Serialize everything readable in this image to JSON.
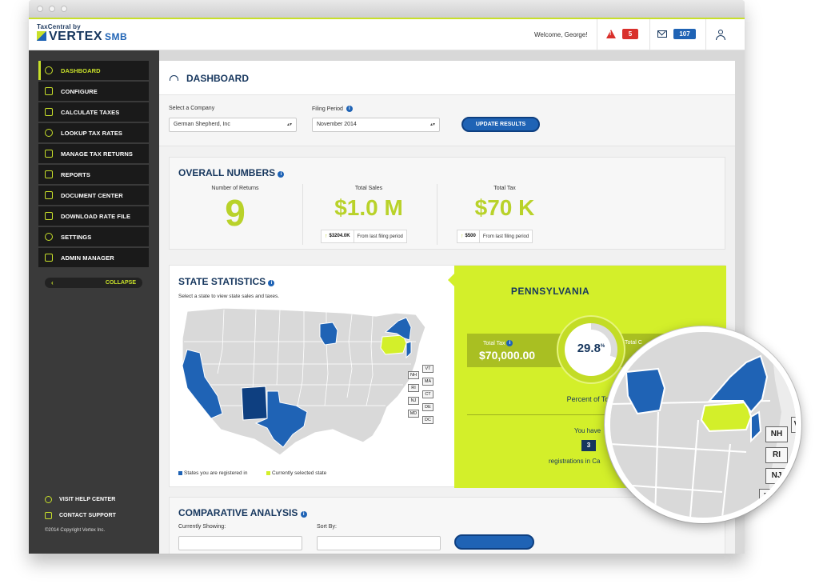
{
  "header": {
    "logo_small": "TaxCentral by",
    "logo_main": "VERTEX",
    "logo_suffix": "SMB",
    "welcome": "Welcome, George!",
    "alerts_count": "5",
    "messages_count": "107"
  },
  "sidebar": {
    "items": [
      {
        "label": "DASHBOARD",
        "icon": "gauge-icon"
      },
      {
        "label": "CONFIGURE",
        "icon": "sliders-icon"
      },
      {
        "label": "CALCULATE TAXES",
        "icon": "calculator-icon"
      },
      {
        "label": "LOOKUP TAX RATES",
        "icon": "magnifier-icon"
      },
      {
        "label": "MANAGE TAX RETURNS",
        "icon": "documents-icon"
      },
      {
        "label": "REPORTS",
        "icon": "chart-icon"
      },
      {
        "label": "DOCUMENT CENTER",
        "icon": "folder-icon"
      },
      {
        "label": "DOWNLOAD RATE FILE",
        "icon": "download-icon"
      },
      {
        "label": "SETTINGS",
        "icon": "gear-icon"
      },
      {
        "label": "ADMIN MANAGER",
        "icon": "admin-icon"
      }
    ],
    "collapse_chevron": "‹",
    "collapse_label": "COLLAPSE",
    "help_center": "VISIT HELP CENTER",
    "contact_support": "CONTACT SUPPORT",
    "copyright": "©2014 Copyright Vertex Inc."
  },
  "main": {
    "page_title": "DASHBOARD",
    "filters": {
      "company_label": "Select a Company",
      "company_value": "German Shepherd, Inc",
      "period_label": "Filing Period",
      "period_value": "November 2014",
      "update_button": "UPDATE RESULTS",
      "arrow": "▴▾"
    },
    "overall": {
      "title": "OVERALL NUMBERS",
      "returns_label": "Number of Returns",
      "returns_value": "9",
      "sales_label": "Total Sales",
      "sales_value": "$1.0 M",
      "sales_delta": "$3204.0K",
      "sales_delta_text": "From last filing period",
      "tax_label": "Total Tax",
      "tax_value": "$70 K",
      "tax_delta": "$500",
      "tax_delta_text": "From last filing period"
    },
    "state_stats": {
      "title": "STATE STATISTICS",
      "subtitle": "Select a state to view state sales and taxes.",
      "small_states": [
        "VT",
        "NH",
        "MA",
        "RI",
        "CT",
        "NJ",
        "DE",
        "MD",
        "DC"
      ],
      "legend_registered": "States you are registered in",
      "legend_selected": "Currently selected state",
      "colors": {
        "registered": "#1f63b5",
        "dark": "#0e3f80",
        "selected": "#d3ef2a",
        "default": "#d9d9d9"
      },
      "panel": {
        "state": "PENNSYLVANIA",
        "total_tax_label": "Total Tax",
        "total_tax_value": "$70,000.00",
        "total_col_label": "Total C",
        "percent": "29.8",
        "percent_sign": "%",
        "percent_label": "Percent of Total V",
        "you_have": "You have",
        "reg_count": "3",
        "reg_text": "registrations in Ca"
      }
    },
    "comparative": {
      "title": "COMPARATIVE ANALYSIS"
    }
  },
  "magnifier": {
    "boxes": [
      "NH",
      "RI",
      "NJ",
      "V",
      "M"
    ]
  }
}
